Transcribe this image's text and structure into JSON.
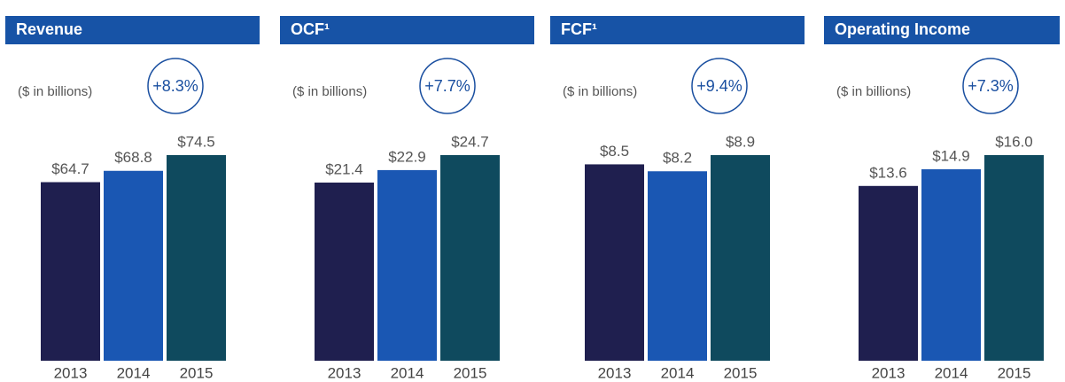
{
  "chart_data": [
    {
      "type": "bar",
      "title": "Revenue",
      "subtitle": "($ in billions)",
      "annotation": "+8.3%",
      "categories": [
        "2013",
        "2014",
        "2015"
      ],
      "values": [
        64.7,
        68.8,
        74.5
      ],
      "value_labels": [
        "$64.7",
        "$68.8",
        "$74.5"
      ],
      "colors": [
        "#1f1f4f",
        "#1a57b3",
        "#0f4a5e"
      ]
    },
    {
      "type": "bar",
      "title": "OCF¹",
      "subtitle": "($ in billions)",
      "annotation": "+7.7%",
      "categories": [
        "2013",
        "2014",
        "2015"
      ],
      "values": [
        21.4,
        22.9,
        24.7
      ],
      "value_labels": [
        "$21.4",
        "$22.9",
        "$24.7"
      ],
      "colors": [
        "#1f1f4f",
        "#1a57b3",
        "#0f4a5e"
      ]
    },
    {
      "type": "bar",
      "title": "FCF¹",
      "subtitle": "($ in billions)",
      "annotation": "+9.4%",
      "categories": [
        "2013",
        "2014",
        "2015"
      ],
      "values": [
        8.5,
        8.2,
        8.9
      ],
      "value_labels": [
        "$8.5",
        "$8.2",
        "$8.9"
      ],
      "colors": [
        "#1f1f4f",
        "#1a57b3",
        "#0f4a5e"
      ]
    },
    {
      "type": "bar",
      "title": "Operating Income",
      "subtitle": "($ in billions)",
      "annotation": "+7.3%",
      "categories": [
        "2013",
        "2014",
        "2015"
      ],
      "values": [
        13.6,
        14.9,
        16.0
      ],
      "value_labels": [
        "$13.6",
        "$14.9",
        "$16.0"
      ],
      "colors": [
        "#1f1f4f",
        "#1a57b3",
        "#0f4a5e"
      ]
    }
  ]
}
